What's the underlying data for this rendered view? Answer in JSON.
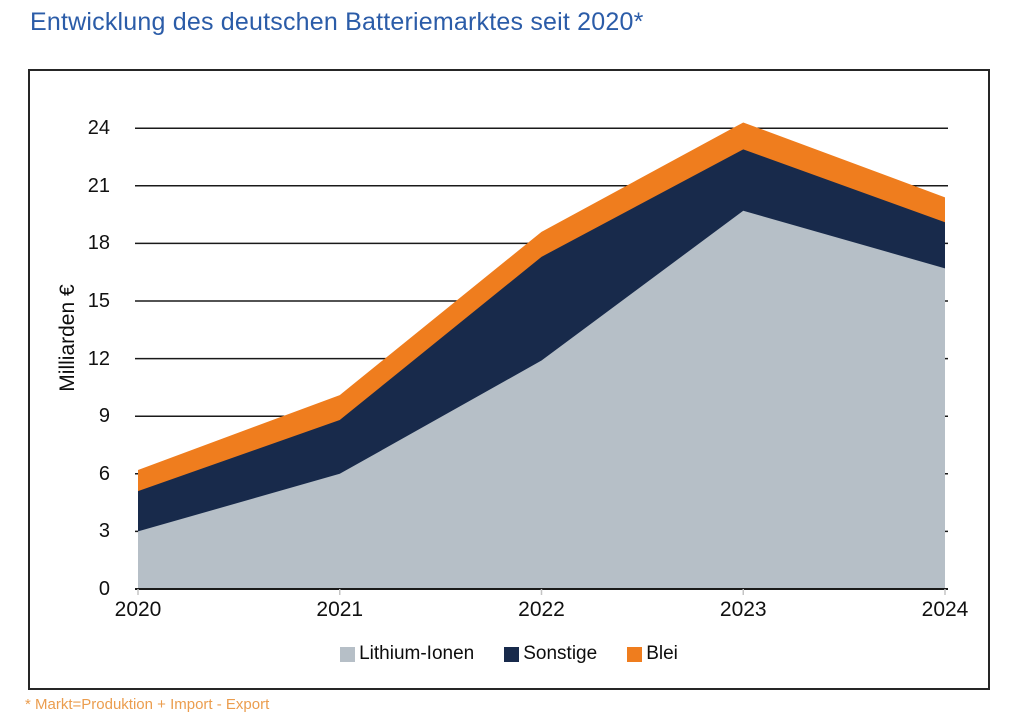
{
  "title": "Entwicklung des deutschen Batteriemarktes seit 2020*",
  "footnote": "* Markt=Produktion + Import - Export",
  "colors": {
    "title": "#2B5CA8",
    "footnote": "#EB9D4E",
    "grid": "#1a1a1a",
    "axis": "#1a1a1a",
    "minor_tick": "#c4c4c4",
    "box_border": "#262626"
  },
  "chart_data": {
    "type": "area",
    "stacked": true,
    "title": "Entwicklung des deutschen Batteriemarktes seit 2020*",
    "xlabel": "",
    "ylabel": "Milliarden €",
    "x": [
      "2020",
      "2021",
      "2022",
      "2023",
      "2024"
    ],
    "series": [
      {
        "name": "Lithium-Ionen",
        "color": "#B6BFC7",
        "values": [
          3.0,
          6.0,
          11.9,
          19.7,
          16.7
        ]
      },
      {
        "name": "Sonstige",
        "color": "#182A4B",
        "values": [
          2.1,
          2.8,
          5.4,
          3.2,
          2.4
        ]
      },
      {
        "name": "Blei",
        "color": "#EF7D1E",
        "values": [
          1.1,
          1.3,
          1.3,
          1.4,
          1.3
        ]
      }
    ],
    "stacked_totals": [
      6.2,
      10.1,
      18.6,
      24.3,
      20.4
    ],
    "ylim": [
      0,
      24
    ],
    "yticks": [
      0,
      3,
      6,
      9,
      12,
      15,
      18,
      21,
      24
    ],
    "grid": true,
    "legend_position": "bottom"
  }
}
